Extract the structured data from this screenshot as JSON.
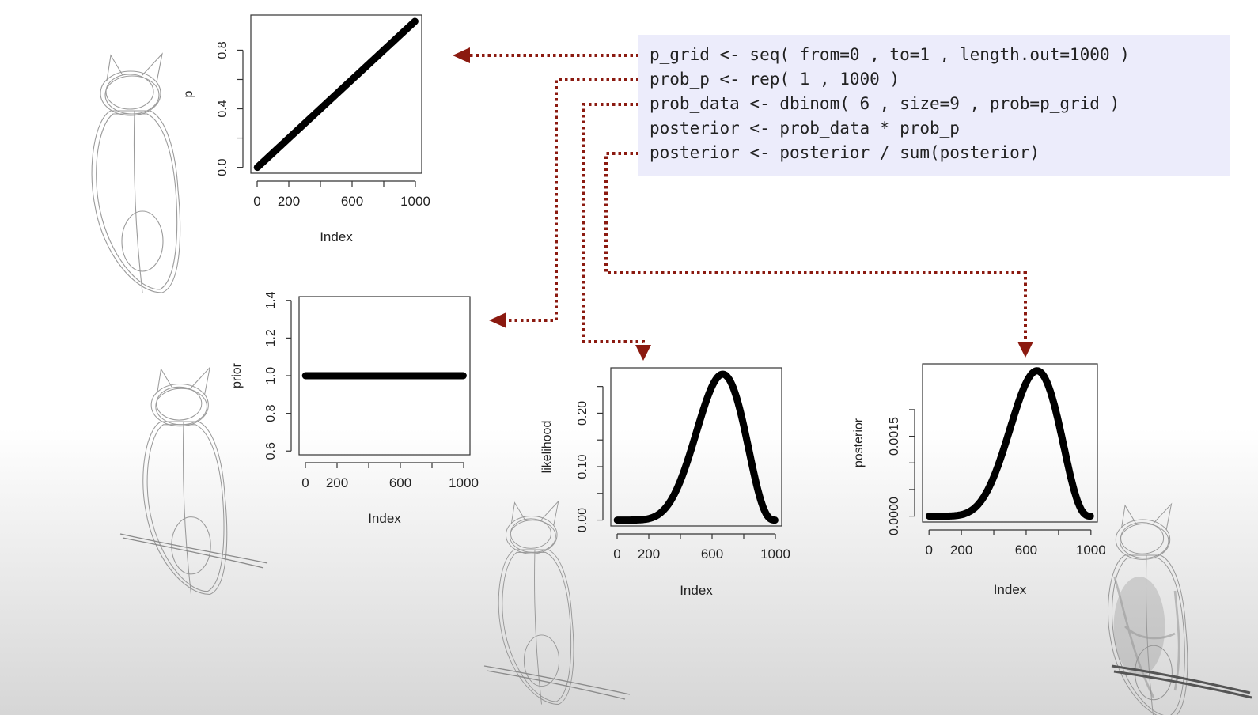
{
  "code": {
    "lines": [
      "p_grid <- seq( from=0 , to=1 , length.out=1000 )",
      "prob_p <- rep( 1 , 1000 )",
      "prob_data <- dbinom( 6 , size=9 , prob=p_grid )",
      "posterior <- prob_data * prob_p",
      "posterior <- posterior / sum(posterior)"
    ]
  },
  "colors": {
    "arrow": "#8b1a10",
    "code_bg": "#ececfb",
    "plot_line": "#000000",
    "sketch": "#8a8a8a"
  },
  "icons": [
    "owl-sketch-icon"
  ],
  "chart_data": [
    {
      "id": "p",
      "type": "scatter",
      "xlabel": "Index",
      "ylabel": "p",
      "xticks": [
        0,
        200,
        600,
        1000
      ],
      "xtick_labels": [
        "0",
        "200",
        "600",
        "1000"
      ],
      "xtick_marks": [
        0,
        200,
        400,
        600,
        800,
        1000
      ],
      "yticks": [
        0.0,
        0.4,
        0.8
      ],
      "ytick_labels": [
        "0.0",
        "0.4",
        "0.8"
      ],
      "ytick_marks": [
        0.0,
        0.2,
        0.4,
        0.6,
        0.8
      ],
      "xlim": [
        -40,
        1040
      ],
      "ylim": [
        -0.04,
        1.04
      ],
      "function": "linear",
      "n": 1000
    },
    {
      "id": "prior",
      "type": "scatter",
      "xlabel": "Index",
      "ylabel": "prior",
      "xticks": [
        0,
        200,
        600,
        1000
      ],
      "xtick_labels": [
        "0",
        "200",
        "600",
        "1000"
      ],
      "xtick_marks": [
        0,
        200,
        400,
        600,
        800,
        1000
      ],
      "yticks": [
        0.6,
        0.8,
        1.0,
        1.2,
        1.4
      ],
      "ytick_labels": [
        "0.6",
        "0.8",
        "1.0",
        "1.2",
        "1.4"
      ],
      "ytick_marks": [
        0.6,
        0.8,
        1.0,
        1.2,
        1.4
      ],
      "xlim": [
        -40,
        1040
      ],
      "ylim": [
        0.58,
        1.42
      ],
      "function": "constant",
      "value": 1.0,
      "n": 1000
    },
    {
      "id": "likelihood",
      "type": "scatter",
      "xlabel": "Index",
      "ylabel": "likelihood",
      "xticks": [
        0,
        200,
        600,
        1000
      ],
      "xtick_labels": [
        "0",
        "200",
        "600",
        "1000"
      ],
      "xtick_marks": [
        0,
        200,
        400,
        600,
        800,
        1000
      ],
      "yticks": [
        0.0,
        0.1,
        0.2
      ],
      "ytick_labels": [
        "0.00",
        "0.10",
        "0.20"
      ],
      "ytick_marks": [
        0.0,
        0.05,
        0.1,
        0.15,
        0.2,
        0.25
      ],
      "xlim": [
        -40,
        1040
      ],
      "ylim": [
        -0.011,
        0.285
      ],
      "function": "binomial_likelihood",
      "successes": 6,
      "size": 9,
      "peak": 0.273,
      "n": 1000
    },
    {
      "id": "posterior",
      "type": "scatter",
      "xlabel": "Index",
      "ylabel": "posterior",
      "xticks": [
        0,
        200,
        600,
        1000
      ],
      "xtick_labels": [
        "0",
        "200",
        "600",
        "1000"
      ],
      "xtick_marks": [
        0,
        200,
        400,
        600,
        800,
        1000
      ],
      "yticks": [
        0.0,
        0.0015
      ],
      "ytick_labels": [
        "0.0000",
        "0.0015"
      ],
      "ytick_marks": [
        0.0,
        0.0005,
        0.001,
        0.0015,
        0.002
      ],
      "xlim": [
        -40,
        1040
      ],
      "ylim": [
        -0.00011,
        0.00286
      ],
      "function": "binomial_posterior",
      "successes": 6,
      "size": 9,
      "peak": 0.00273,
      "n": 1000
    }
  ]
}
